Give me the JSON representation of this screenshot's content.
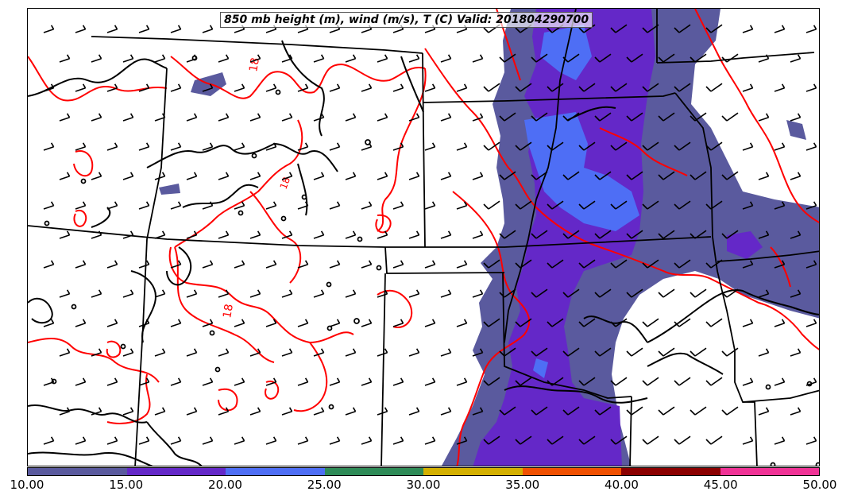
{
  "title": "850 mb height (m), wind (m/s), T (C) Valid: 201804290700",
  "colorbar": {
    "colors": [
      "#5a5a9e",
      "#6428c8",
      "#4e6ef5",
      "#2e8b57",
      "#d4b000",
      "#f05000",
      "#8b0000",
      "#f03296"
    ],
    "labels": [
      "10.00",
      "15.00",
      "20.00",
      "25.00",
      "30.00",
      "35.00",
      "40.00",
      "45.00",
      "50.00"
    ]
  },
  "contour_labels": [
    "18",
    "18",
    "18"
  ],
  "colors": {
    "temperature_contour": "#ff0000",
    "height_contour": "#000000",
    "state_borders": "#000000",
    "wind_barbs": "#000000"
  },
  "legend": {
    "quantity": "wind speed (m/s)",
    "range": [
      10,
      50
    ],
    "step": 5
  }
}
